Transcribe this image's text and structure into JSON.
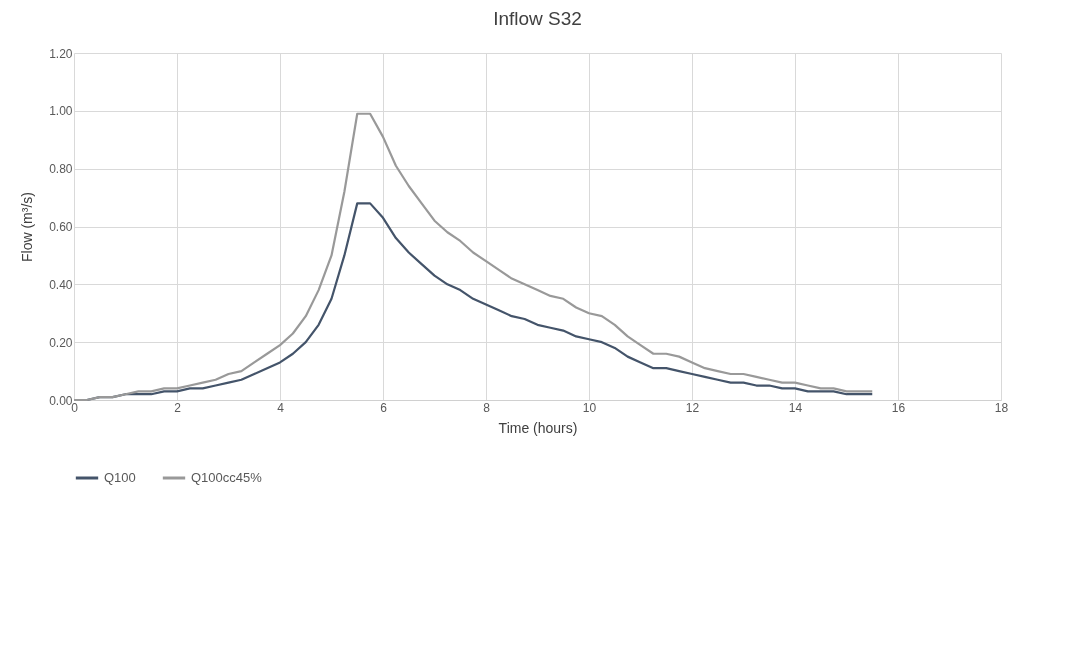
{
  "chart_data": {
    "type": "line",
    "title": "Inflow S32",
    "xlabel": "Time (hours)",
    "ylabel": "Flow (m³/s)",
    "x": [
      0,
      0.25,
      0.5,
      0.75,
      1,
      1.25,
      1.5,
      1.75,
      2,
      2.25,
      2.5,
      2.75,
      3,
      3.25,
      3.5,
      3.75,
      4,
      4.25,
      4.5,
      4.75,
      5,
      5.25,
      5.5,
      5.75,
      6,
      6.25,
      6.5,
      6.75,
      7,
      7.25,
      7.5,
      7.75,
      8,
      8.25,
      8.5,
      8.75,
      9,
      9.25,
      9.5,
      9.75,
      10,
      10.25,
      10.5,
      10.75,
      11,
      11.25,
      11.5,
      11.75,
      12,
      12.25,
      12.5,
      12.75,
      13,
      13.25,
      13.5,
      13.75,
      14,
      14.25,
      14.5,
      14.75,
      15,
      15.25,
      15.5
    ],
    "series": [
      {
        "name": "Q100",
        "color": "#44546a",
        "values": [
          0,
          0,
          0.01,
          0.01,
          0.02,
          0.02,
          0.02,
          0.03,
          0.03,
          0.04,
          0.04,
          0.05,
          0.06,
          0.07,
          0.09,
          0.11,
          0.13,
          0.16,
          0.2,
          0.26,
          0.35,
          0.5,
          0.68,
          0.68,
          0.63,
          0.56,
          0.51,
          0.47,
          0.43,
          0.4,
          0.38,
          0.35,
          0.33,
          0.31,
          0.29,
          0.28,
          0.26,
          0.25,
          0.24,
          0.22,
          0.21,
          0.2,
          0.18,
          0.15,
          0.13,
          0.11,
          0.11,
          0.1,
          0.09,
          0.08,
          0.07,
          0.06,
          0.06,
          0.05,
          0.05,
          0.04,
          0.04,
          0.03,
          0.03,
          0.03,
          0.02,
          0.02,
          0.02
        ]
      },
      {
        "name": "Q100cc45%",
        "color": "#999999",
        "values": [
          0,
          0,
          0.01,
          0.01,
          0.02,
          0.03,
          0.03,
          0.04,
          0.04,
          0.05,
          0.06,
          0.07,
          0.09,
          0.1,
          0.13,
          0.16,
          0.19,
          0.23,
          0.29,
          0.38,
          0.5,
          0.72,
          0.99,
          0.99,
          0.91,
          0.81,
          0.74,
          0.68,
          0.62,
          0.58,
          0.55,
          0.51,
          0.48,
          0.45,
          0.42,
          0.4,
          0.38,
          0.36,
          0.35,
          0.32,
          0.3,
          0.29,
          0.26,
          0.22,
          0.19,
          0.16,
          0.16,
          0.15,
          0.13,
          0.11,
          0.1,
          0.09,
          0.09,
          0.08,
          0.07,
          0.06,
          0.06,
          0.05,
          0.04,
          0.04,
          0.03,
          0.03,
          0.03
        ]
      }
    ],
    "xlim": [
      0,
      18
    ],
    "xticks": [
      0,
      2,
      4,
      6,
      8,
      10,
      12,
      14,
      16,
      18
    ],
    "ylim": [
      0,
      1.2
    ],
    "yticks": [
      {
        "value": 0,
        "label": "0.00"
      },
      {
        "value": 0.2,
        "label": "0.20"
      },
      {
        "value": 0.4,
        "label": "0.40"
      },
      {
        "value": 0.6,
        "label": "0.60"
      },
      {
        "value": 0.8,
        "label": "0.80"
      },
      {
        "value": 1,
        "label": "1.00"
      },
      {
        "value": 1.2,
        "label": "1.20"
      }
    ],
    "grid": true,
    "legend": "bottom",
    "marker": "none",
    "line_style": "solid"
  }
}
